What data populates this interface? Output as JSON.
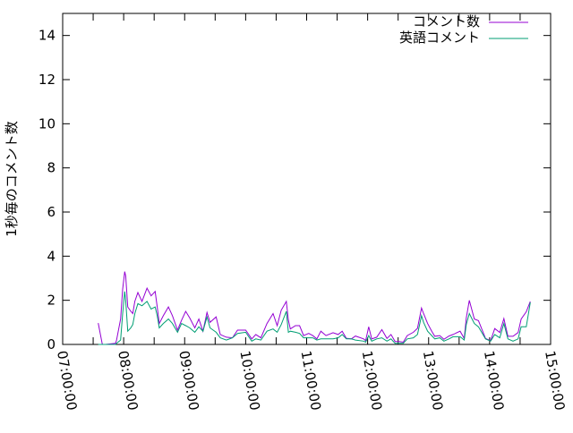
{
  "chart_data": {
    "type": "line",
    "title": "",
    "xlabel": "",
    "ylabel": "1秒毎のコメント数",
    "xlim": [
      "07:00:00",
      "15:00:00"
    ],
    "ylim": [
      0,
      15
    ],
    "x_tick_labels": [
      "07:00:00",
      "08:00:00",
      "09:00:00",
      "10:00:00",
      "11:00:00",
      "12:00:00",
      "13:00:00",
      "14:00:00",
      "15:00:00"
    ],
    "y_tick_labels": [
      "0",
      "2",
      "4",
      "6",
      "8",
      "10",
      "12",
      "14"
    ],
    "grid": false,
    "legend_position": "top-right",
    "x": [
      "07:35",
      "07:39",
      "07:42",
      "07:52",
      "07:53",
      "07:57",
      "07:59",
      "08:01",
      "08:02",
      "08:04",
      "08:07",
      "08:09",
      "08:11",
      "08:14",
      "08:18",
      "08:23",
      "08:27",
      "08:31",
      "08:33",
      "08:35",
      "08:39",
      "08:44",
      "08:48",
      "08:53",
      "08:57",
      "09:01",
      "09:05",
      "09:10",
      "09:14",
      "09:18",
      "09:22",
      "09:25",
      "09:31",
      "09:35",
      "09:41",
      "09:47",
      "09:52",
      "10:00",
      "10:06",
      "10:10",
      "10:15",
      "10:21",
      "10:27",
      "10:31",
      "10:35",
      "10:40",
      "10:42",
      "10:44",
      "10:49",
      "10:53",
      "10:57",
      "11:02",
      "11:06",
      "11:10",
      "11:14",
      "11:19",
      "11:26",
      "11:31",
      "11:35",
      "11:39",
      "11:44",
      "11:48",
      "11:56",
      "11:58",
      "12:01",
      "12:04",
      "12:09",
      "12:14",
      "12:19",
      "12:23",
      "12:27",
      "12:31",
      "12:35",
      "12:39",
      "12:45",
      "12:49",
      "12:53",
      "12:55",
      "12:59",
      "13:03",
      "13:06",
      "13:11",
      "13:15",
      "13:20",
      "13:24",
      "13:31",
      "13:35",
      "13:37",
      "13:40",
      "13:45",
      "13:49",
      "13:56",
      "14:01",
      "14:05",
      "14:10",
      "14:14",
      "14:18",
      "14:23",
      "14:28",
      "14:31",
      "14:36",
      "14:40"
    ],
    "series": [
      {
        "name": "コメント数",
        "color": "#9400d3",
        "values": [
          0.97,
          0,
          0,
          0.05,
          0.2,
          1.15,
          2.5,
          3.3,
          3.1,
          1.7,
          1.5,
          1.4,
          1.95,
          2.35,
          1.95,
          2.55,
          2.2,
          2.4,
          1.7,
          0.95,
          1.3,
          1.7,
          1.3,
          0.65,
          1.1,
          1.5,
          1.2,
          0.75,
          1.15,
          0.6,
          1.45,
          1.0,
          1.25,
          0.45,
          0.33,
          0.3,
          0.65,
          0.65,
          0.25,
          0.45,
          0.3,
          0.95,
          1.4,
          0.85,
          1.55,
          1.95,
          1.1,
          0.7,
          0.85,
          0.85,
          0.4,
          0.5,
          0.4,
          0.25,
          0.6,
          0.4,
          0.53,
          0.45,
          0.6,
          0.28,
          0.25,
          0.38,
          0.25,
          0.17,
          0.8,
          0.25,
          0.33,
          0.67,
          0.27,
          0.45,
          0.13,
          0.13,
          0.1,
          0.4,
          0.55,
          0.73,
          1.65,
          1.4,
          0.95,
          0.6,
          0.37,
          0.4,
          0.23,
          0.38,
          0.45,
          0.6,
          0.27,
          1.2,
          2.0,
          1.15,
          1.08,
          0.27,
          0.17,
          0.72,
          0.54,
          1.17,
          0.37,
          0.37,
          0.54,
          1.15,
          1.48,
          1.95
        ]
      },
      {
        "name": "英語コメント",
        "color": "#009e73",
        "values": [
          0,
          0,
          0,
          0,
          0.05,
          0.2,
          1.4,
          2.4,
          2.0,
          0.6,
          0.75,
          0.9,
          1.4,
          1.85,
          1.75,
          1.95,
          1.6,
          1.7,
          1.3,
          0.75,
          0.95,
          1.15,
          0.95,
          0.55,
          0.95,
          0.85,
          0.75,
          0.55,
          0.8,
          0.6,
          1.25,
          0.75,
          0.55,
          0.3,
          0.2,
          0.3,
          0.5,
          0.55,
          0.15,
          0.25,
          0.2,
          0.6,
          0.7,
          0.55,
          0.9,
          1.5,
          0.55,
          0.6,
          0.55,
          0.5,
          0.3,
          0.3,
          0.3,
          0.2,
          0.25,
          0.25,
          0.25,
          0.3,
          0.45,
          0.25,
          0.25,
          0.2,
          0.15,
          0.1,
          0.4,
          0.15,
          0.25,
          0.3,
          0.15,
          0.25,
          0.05,
          0.05,
          0.05,
          0.25,
          0.3,
          0.45,
          1.3,
          1.0,
          0.6,
          0.4,
          0.25,
          0.3,
          0.15,
          0.25,
          0.35,
          0.35,
          0.2,
          0.9,
          1.4,
          0.95,
          0.8,
          0.25,
          0.15,
          0.45,
          0.3,
          0.95,
          0.25,
          0.15,
          0.25,
          0.8,
          0.8,
          1.9
        ]
      }
    ]
  }
}
